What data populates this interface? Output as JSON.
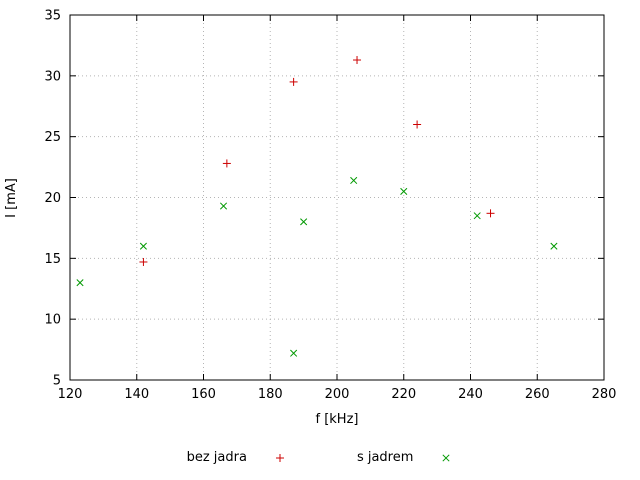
{
  "chart_data": {
    "type": "scatter",
    "xlabel": "f [kHz]",
    "ylabel": "I [mA]",
    "xlim": [
      120,
      280
    ],
    "ylim": [
      5,
      35
    ],
    "xticks": [
      120,
      140,
      160,
      180,
      200,
      220,
      240,
      260,
      280
    ],
    "yticks": [
      5,
      10,
      15,
      20,
      25,
      30,
      35
    ],
    "grid": "dotted",
    "grid_color": "#b5b5b5",
    "border_color": "#000000",
    "legend_position": "bottom-center",
    "series": [
      {
        "name": "bez jadra",
        "marker": "plus",
        "color": "#cc0000",
        "points": [
          [
            142,
            14.7
          ],
          [
            167,
            22.8
          ],
          [
            187,
            29.5
          ],
          [
            206,
            31.3
          ],
          [
            224,
            26.0
          ],
          [
            246,
            18.7
          ]
        ]
      },
      {
        "name": "s jadrem",
        "marker": "cross",
        "color": "#009900",
        "points": [
          [
            123,
            13.0
          ],
          [
            142,
            16.0
          ],
          [
            166,
            19.3
          ],
          [
            187,
            7.2
          ],
          [
            190,
            18.0
          ],
          [
            205,
            21.4
          ],
          [
            220,
            20.5
          ],
          [
            242,
            18.5
          ],
          [
            265,
            16.0
          ]
        ]
      }
    ]
  }
}
